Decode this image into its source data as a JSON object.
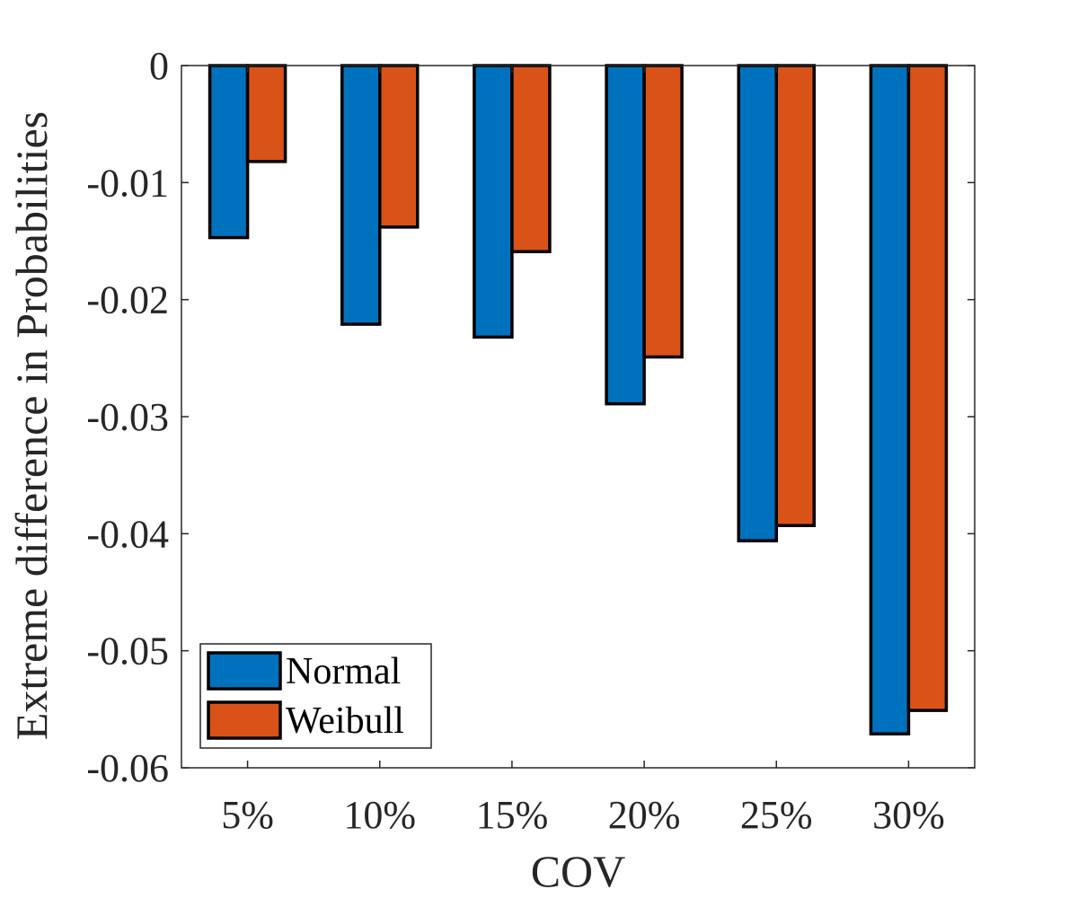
{
  "chart_data": {
    "type": "bar",
    "categories": [
      "5%",
      "10%",
      "15%",
      "20%",
      "25%",
      "30%"
    ],
    "series": [
      {
        "name": "Normal",
        "color": "#0072BD",
        "values": [
          -0.0147,
          -0.0221,
          -0.0232,
          -0.0289,
          -0.0406,
          -0.0571
        ]
      },
      {
        "name": "Weibull",
        "color": "#D95319",
        "values": [
          -0.0082,
          -0.0138,
          -0.0159,
          -0.0249,
          -0.0393,
          -0.0551
        ]
      }
    ],
    "xlabel": "COV",
    "ylabel": "Extreme difference in Probabilities",
    "ylim": [
      -0.06,
      0
    ],
    "yticks": [
      0,
      -0.01,
      -0.02,
      -0.03,
      -0.04,
      -0.05,
      -0.06
    ],
    "ytick_labels": [
      "0",
      "-0.01",
      "-0.02",
      "-0.03",
      "-0.04",
      "-0.05",
      "-0.06"
    ],
    "grid": false,
    "legend_position": "bottom-left"
  }
}
